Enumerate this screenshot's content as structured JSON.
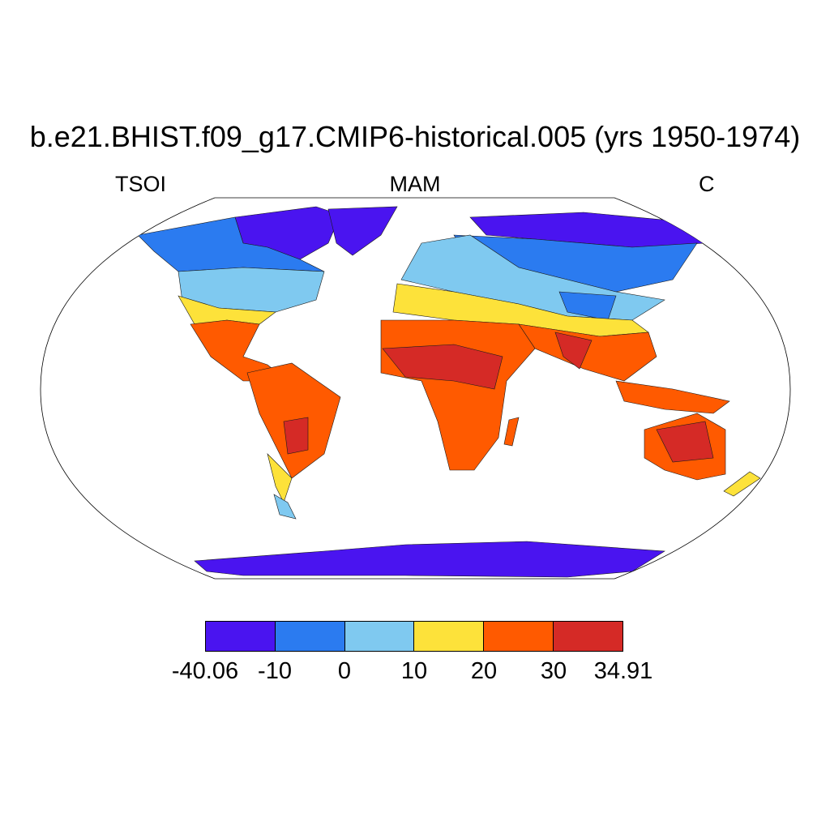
{
  "title": "b.e21.BHIST.f09_g17.CMIP6-historical.005 (yrs 1950-1974)",
  "variable": "TSOI",
  "season": "MAM",
  "units": "C",
  "colorbar": {
    "colors": [
      "#4a14f0",
      "#2b7bf0",
      "#7fc9f0",
      "#fde23a",
      "#ff5a00",
      "#d52a26"
    ],
    "labels": [
      "-40.06",
      "-10",
      "0",
      "10",
      "20",
      "30",
      "34.91"
    ]
  },
  "map": {
    "projection": "Robinson",
    "ocean_color": "#ffffff",
    "coastline_color": "#000000"
  }
}
